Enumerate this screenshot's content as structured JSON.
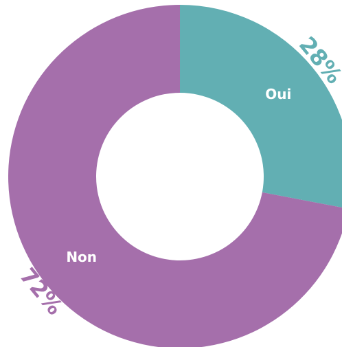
{
  "chart_data": {
    "type": "donut",
    "categories": [
      "Oui",
      "Non"
    ],
    "values": [
      28,
      72
    ],
    "value_labels": [
      "28%",
      "72%"
    ],
    "colors": [
      "#62afb3",
      "#a56fab"
    ]
  }
}
